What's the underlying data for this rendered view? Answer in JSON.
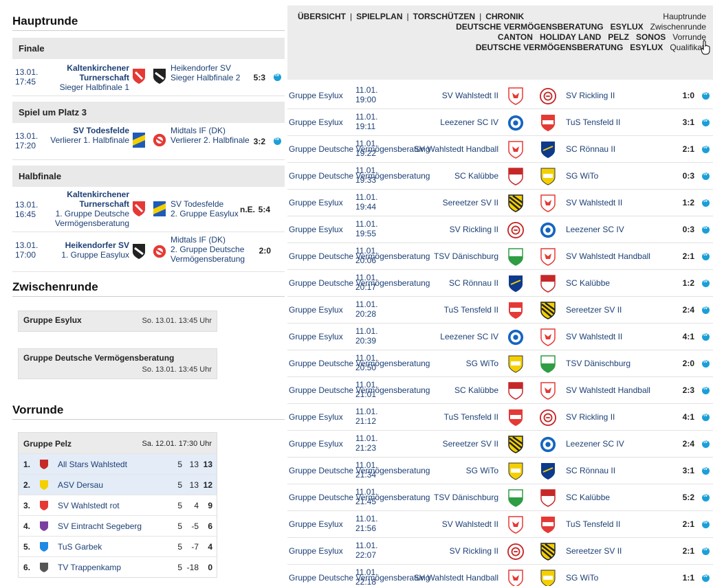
{
  "hauptrunde": {
    "title": "Hauptrunde",
    "finale": {
      "label": "Finale",
      "date": "13.01.",
      "time": "17:45",
      "home": "Kaltenkirchener Turnerschaft",
      "home_sub": "Sieger Halbfinale 1",
      "away": "Heikendorfer SV",
      "away_sub": "Sieger Halbfinale 2",
      "score": "5:3"
    },
    "platz3": {
      "label": "Spiel um Platz 3",
      "date": "13.01.",
      "time": "17:20",
      "home": "SV Todesfelde",
      "home_sub": "Verlierer 1. Halbfinale",
      "away": "Midtals IF (DK)",
      "away_sub": "Verlierer 2. Halbfinale",
      "score": "3:2"
    },
    "halbfinale": {
      "label": "Halbfinale",
      "m1": {
        "date": "13.01.",
        "time": "16:45",
        "home": "Kaltenkirchener Turnerschaft",
        "home_sub": "1. Gruppe Deutsche Vermögensberatung",
        "away": "SV Todesfelde",
        "away_sub": "2. Gruppe Easylux",
        "ne": "n.E.",
        "score": "5:4"
      },
      "m2": {
        "date": "13.01.",
        "time": "17:00",
        "home": "Heikendorfer SV",
        "home_sub": "1. Gruppe Easylux",
        "away": "Midtals IF (DK)",
        "away_sub": "2. Gruppe Deutsche Vermögensberatung",
        "score": "2:0"
      }
    }
  },
  "zwischenrunde": {
    "title": "Zwischenrunde",
    "g1": {
      "name": "Gruppe Esylux",
      "date": "So. 13.01. 13:45 Uhr"
    },
    "g2": {
      "name": "Gruppe Deutsche Vermögensberatung",
      "date": "So. 13.01. 13:45 Uhr"
    }
  },
  "vorrunde": {
    "title": "Vorrunde",
    "group": "Gruppe Pelz",
    "date": "Sa. 12.01. 17:30 Uhr",
    "rows": [
      {
        "pos": "1.",
        "team": "All Stars Wahlstedt",
        "sp": "5",
        "diff": "13",
        "pts": "13"
      },
      {
        "pos": "2.",
        "team": "ASV Dersau",
        "sp": "5",
        "diff": "13",
        "pts": "12"
      },
      {
        "pos": "3.",
        "team": "SV Wahlstedt rot",
        "sp": "5",
        "diff": "4",
        "pts": "9"
      },
      {
        "pos": "4.",
        "team": "SV Eintracht Segeberg",
        "sp": "5",
        "diff": "-5",
        "pts": "6"
      },
      {
        "pos": "5.",
        "team": "TuS Garbek",
        "sp": "5",
        "diff": "-7",
        "pts": "4"
      },
      {
        "pos": "6.",
        "team": "TV Trappenkamp",
        "sp": "5",
        "diff": "-18",
        "pts": "0"
      }
    ]
  },
  "nav": {
    "items": [
      "ÜBERSICHT",
      "SPIELPLAN",
      "TORSCHÜTZEN",
      "CHRONIK"
    ],
    "separator": "|",
    "hauptrunde": "Hauptrunde",
    "zw_groups": [
      "DEUTSCHE VERMÖGENSBERATUNG",
      "ESYLUX"
    ],
    "zwischenrunde": "Zwischenrunde",
    "vr_groups": [
      "CANTON",
      "HOLIDAY LAND",
      "PELZ",
      "SONOS"
    ],
    "vorrunde": "Vorrunde",
    "q_groups": [
      "DEUTSCHE VERMÖGENSBERATUNG",
      "ESYLUX"
    ],
    "qualifikation": "Qualifikati"
  },
  "games": [
    {
      "grp": "Gruppe Esylux",
      "date": "11.01.",
      "time": "19:00",
      "home": "SV Wahlstedt II",
      "away": "SV Rickling II",
      "score": "1:0"
    },
    {
      "grp": "Gruppe Esylux",
      "date": "11.01.",
      "time": "19:11",
      "home": "Leezener SC IV",
      "away": "TuS Tensfeld II",
      "score": "3:1"
    },
    {
      "grp": "Gruppe Deutsche Vermögensberatung",
      "date": "11.01.",
      "time": "19:22",
      "home": "SV Wahlstedt Handball",
      "away": "SC Rönnau II",
      "score": "2:1"
    },
    {
      "grp": "Gruppe Deutsche Vermögensberatung",
      "date": "11.01.",
      "time": "19:33",
      "home": "SC Kalübbe",
      "away": "SG WiTo",
      "score": "0:3"
    },
    {
      "grp": "Gruppe Esylux",
      "date": "11.01.",
      "time": "19:44",
      "home": "Sereetzer SV II",
      "away": "SV Wahlstedt II",
      "score": "1:2"
    },
    {
      "grp": "Gruppe Esylux",
      "date": "11.01.",
      "time": "19:55",
      "home": "SV Rickling II",
      "away": "Leezener SC IV",
      "score": "0:3"
    },
    {
      "grp": "Gruppe Deutsche Vermögensberatung",
      "date": "11.01.",
      "time": "20:06",
      "home": "TSV Dänischburg",
      "away": "SV Wahlstedt Handball",
      "score": "2:1"
    },
    {
      "grp": "Gruppe Deutsche Vermögensberatung",
      "date": "11.01.",
      "time": "20:17",
      "home": "SC Rönnau II",
      "away": "SC Kalübbe",
      "score": "1:2"
    },
    {
      "grp": "Gruppe Esylux",
      "date": "11.01.",
      "time": "20:28",
      "home": "TuS Tensfeld II",
      "away": "Sereetzer SV II",
      "score": "2:4"
    },
    {
      "grp": "Gruppe Esylux",
      "date": "11.01.",
      "time": "20:39",
      "home": "Leezener SC IV",
      "away": "SV Wahlstedt II",
      "score": "4:1"
    },
    {
      "grp": "Gruppe Deutsche Vermögensberatung",
      "date": "11.01.",
      "time": "20:50",
      "home": "SG WiTo",
      "away": "TSV Dänischburg",
      "score": "2:0"
    },
    {
      "grp": "Gruppe Deutsche Vermögensberatung",
      "date": "11.01.",
      "time": "21:01",
      "home": "SC Kalübbe",
      "away": "SV Wahlstedt Handball",
      "score": "2:3"
    },
    {
      "grp": "Gruppe Esylux",
      "date": "11.01.",
      "time": "21:12",
      "home": "TuS Tensfeld II",
      "away": "SV Rickling II",
      "score": "4:1"
    },
    {
      "grp": "Gruppe Esylux",
      "date": "11.01.",
      "time": "21:23",
      "home": "Sereetzer SV II",
      "away": "Leezener SC IV",
      "score": "2:4"
    },
    {
      "grp": "Gruppe Deutsche Vermögensberatung",
      "date": "11.01.",
      "time": "21:34",
      "home": "SG WiTo",
      "away": "SC Rönnau II",
      "score": "3:1"
    },
    {
      "grp": "Gruppe Deutsche Vermögensberatung",
      "date": "11.01.",
      "time": "21:45",
      "home": "TSV Dänischburg",
      "away": "SC Kalübbe",
      "score": "5:2"
    },
    {
      "grp": "Gruppe Esylux",
      "date": "11.01.",
      "time": "21:56",
      "home": "SV Wahlstedt II",
      "away": "TuS Tensfeld II",
      "score": "2:1"
    },
    {
      "grp": "Gruppe Esylux",
      "date": "11.01.",
      "time": "22:07",
      "home": "SV Rickling II",
      "away": "Sereetzer SV II",
      "score": "2:1"
    },
    {
      "grp": "Gruppe Deutsche Vermögensberatung",
      "date": "11.01.",
      "time": "22:18",
      "home": "SV Wahlstedt Handball",
      "away": "SG WiTo",
      "score": "1:1"
    }
  ],
  "crests": {
    "SV Wahlstedt II": "wahlstedt",
    "SV Wahlstedt Handball": "wahlstedt",
    "SV Rickling II": "rickling",
    "Leezener SC IV": "leezen",
    "TuS Tensfeld II": "tensfeld",
    "SC Rönnau II": "roennau",
    "SC Kalübbe": "kaluebbe",
    "SG WiTo": "wito",
    "Sereetzer SV II": "sereetz",
    "TSV Dänischburg": "daenischburg"
  },
  "colors": {
    "link": "#1c3f75",
    "tv": "#1a9fd8",
    "bar": "#e9e9e9",
    "highlight": "#e3ecf7"
  }
}
